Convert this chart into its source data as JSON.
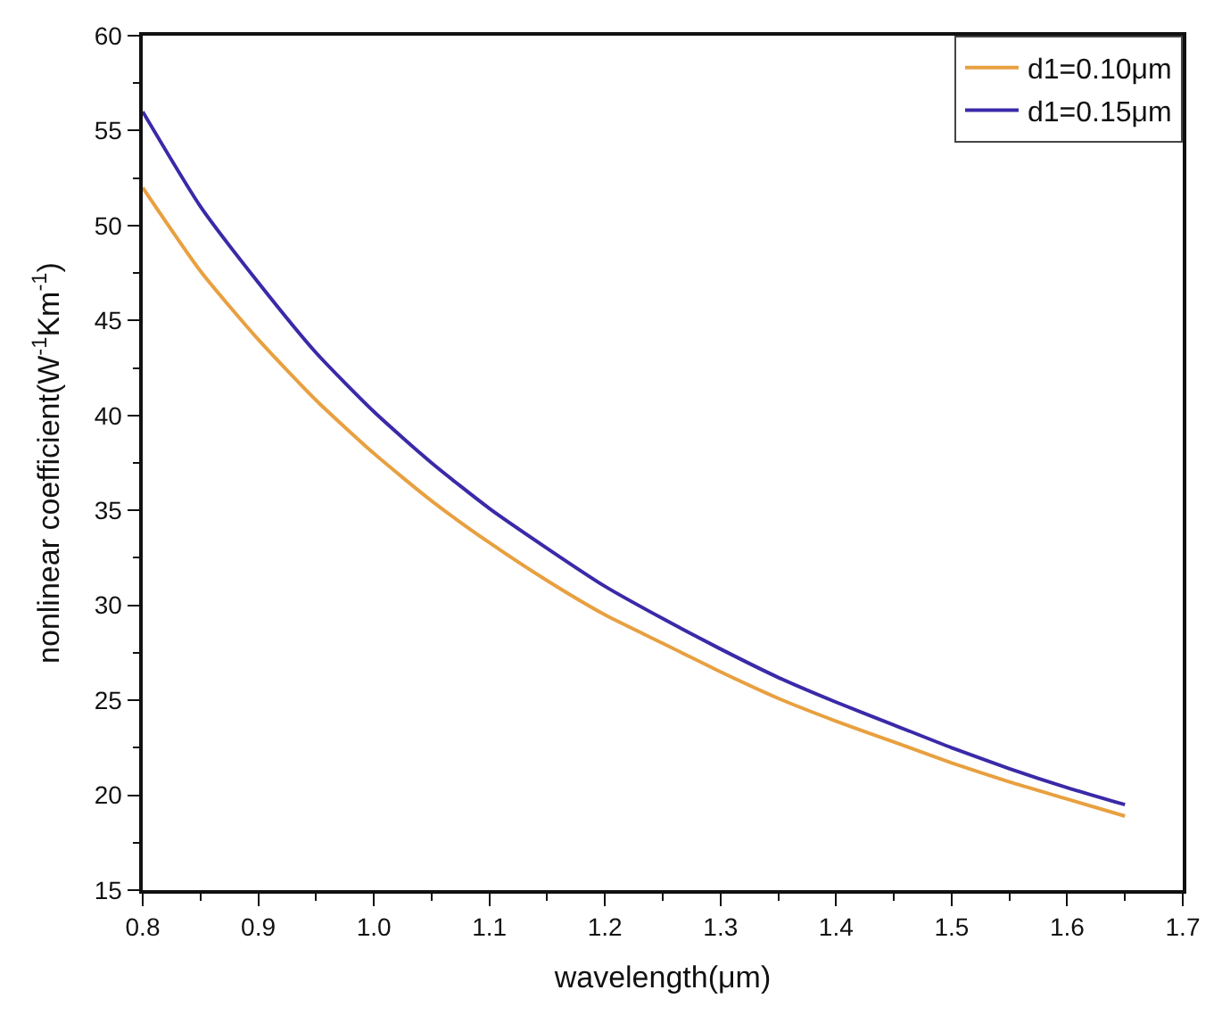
{
  "chart_data": {
    "type": "line",
    "xlabel": "wavelength(μm)",
    "ylabel": "nonlinear coefficient(W$^{-1}$Km$^{-1}$)",
    "x": [
      0.8,
      0.85,
      0.9,
      0.95,
      1.0,
      1.05,
      1.1,
      1.15,
      1.2,
      1.25,
      1.3,
      1.35,
      1.4,
      1.45,
      1.5,
      1.55,
      1.6,
      1.65
    ],
    "series": [
      {
        "name": "d1=0.10μm",
        "color": "#e8a040",
        "values": [
          52,
          47.6,
          44,
          40.8,
          38,
          35.5,
          33.3,
          31.3,
          29.5,
          28,
          26.5,
          25.1,
          23.9,
          22.8,
          21.7,
          20.7,
          19.8,
          18.9
        ]
      },
      {
        "name": "d1=0.15μm",
        "color": "#3a2aa8",
        "values": [
          56,
          51,
          47,
          43.3,
          40.2,
          37.5,
          35.1,
          33,
          31,
          29.3,
          27.7,
          26.2,
          24.9,
          23.7,
          22.5,
          21.4,
          20.4,
          19.5
        ]
      }
    ],
    "xlim": [
      0.8,
      1.7
    ],
    "xticks": [
      {
        "value": 0.8,
        "label": "0.8"
      },
      {
        "value": 0.9,
        "label": "0.9"
      },
      {
        "value": 1.0,
        "label": "1.0"
      },
      {
        "value": 1.1,
        "label": "1.1"
      },
      {
        "value": 1.2,
        "label": "1.2"
      },
      {
        "value": 1.3,
        "label": "1.3"
      },
      {
        "value": 1.4,
        "label": "1.4"
      },
      {
        "value": 1.5,
        "label": "1.5"
      },
      {
        "value": 1.6,
        "label": "1.6"
      },
      {
        "value": 1.7,
        "label": "1.7"
      }
    ],
    "ylim": [
      15,
      60
    ],
    "yticks": [
      15,
      20,
      25,
      30,
      35,
      40,
      45,
      50,
      55,
      60
    ],
    "legend": "top right",
    "marker": "none",
    "line_style": "solid"
  }
}
